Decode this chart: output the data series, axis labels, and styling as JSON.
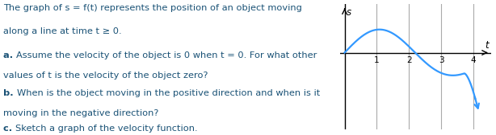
{
  "text_color": "#1a5276",
  "graph_bg": "#ffffff",
  "curve_color": "#3399ff",
  "axis_color": "#000000",
  "grid_color": "#aaaaaa",
  "fig_width": 6.14,
  "fig_height": 1.68,
  "dpi": 100,
  "x_ticks": [
    1,
    2,
    3,
    4
  ],
  "xlim": [
    -0.15,
    4.55
  ],
  "ylim": [
    -1.9,
    1.2
  ]
}
